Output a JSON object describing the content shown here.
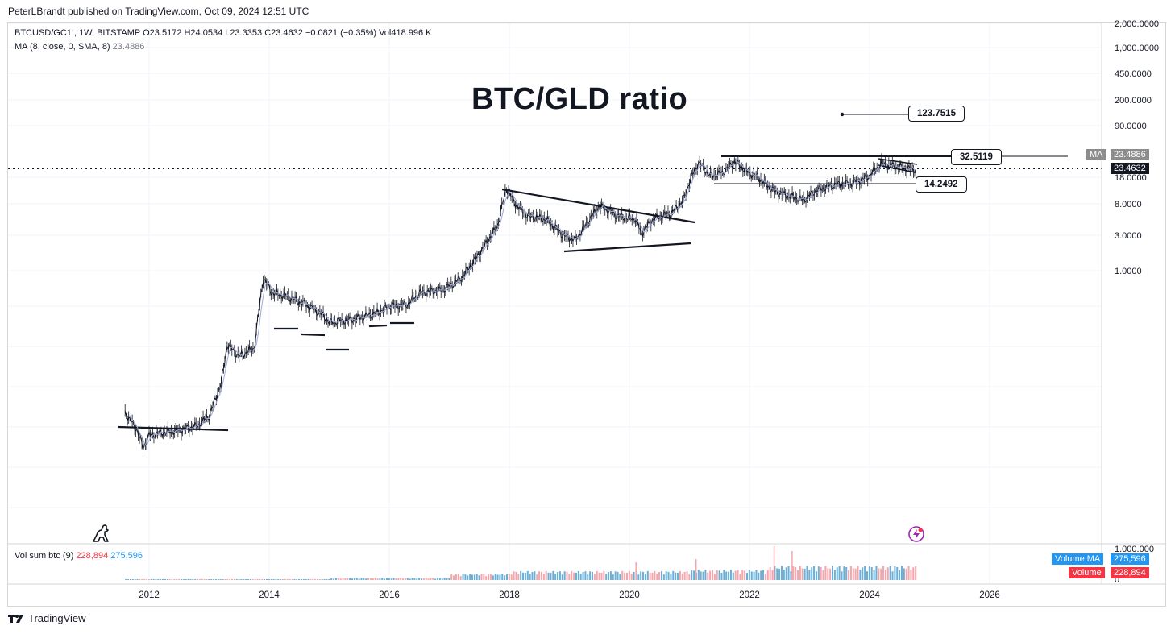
{
  "publisher_line": "PeterLBrandt published on TradingView.com, Oct 09, 2024 12:51 UTC",
  "footer_brand": "TradingView",
  "legend": {
    "symbol_line": "BTCUSD/GC1!, 1W, BITSTAMP  O23.5172  H24.0534  L23.3353  C23.4632  −0.0821 (−0.35%)  Vol418.996 K",
    "ma_label": "MA (8, close, 0, SMA, 8)",
    "ma_value": "23.4886",
    "vol_label": "Vol sum btc (9)",
    "vol_value1": "228,894",
    "vol_value2": "275,596"
  },
  "annotations": {
    "title": "BTC/GLD ratio",
    "box_high": "123.7515",
    "box_mid": "32.5119",
    "box_low": "14.2492"
  },
  "axis_tags": {
    "ma_tag_label": "MA",
    "ma_tag_value": "23.4886",
    "last_price": "23.4632",
    "volume_ma_label": "Volume MA",
    "volume_ma_value": "275,596",
    "volume_label": "Volume",
    "volume_value": "228,894"
  },
  "colors": {
    "volume_up": "#6baed6",
    "volume_down": "#f4a6ad",
    "ma_tag_bg": "#8c8c8c",
    "price_tag_bg": "#131722",
    "volume_ma_bg": "#2196f3",
    "volume_bg": "#f23645"
  },
  "chart_data": {
    "type": "line",
    "scale": "log",
    "title": "BTC/GLD ratio",
    "x_ticks": [
      "2012",
      "2014",
      "2016",
      "2018",
      "2020",
      "2022",
      "2024",
      "2026"
    ],
    "y_ticks": [
      "2,000.0000",
      "1,000.0000",
      "450.0000",
      "200.0000",
      "90.0000",
      "18.0000",
      "8.0000",
      "3.0000",
      "1.0000"
    ],
    "volume_ticks": [
      "1.000.000",
      "0"
    ],
    "series": [
      {
        "name": "BTCUSD/GC1! weekly close",
        "points": [
          [
            2011.6,
            0.012
          ],
          [
            2011.8,
            0.007
          ],
          [
            2011.9,
            0.004
          ],
          [
            2012.0,
            0.006
          ],
          [
            2012.2,
            0.0065
          ],
          [
            2012.5,
            0.007
          ],
          [
            2012.8,
            0.008
          ],
          [
            2013.0,
            0.011
          ],
          [
            2013.2,
            0.03
          ],
          [
            2013.3,
            0.1
          ],
          [
            2013.5,
            0.07
          ],
          [
            2013.75,
            0.09
          ],
          [
            2013.9,
            0.8
          ],
          [
            2014.05,
            0.5
          ],
          [
            2014.3,
            0.45
          ],
          [
            2014.6,
            0.35
          ],
          [
            2014.9,
            0.25
          ],
          [
            2015.0,
            0.2
          ],
          [
            2015.4,
            0.22
          ],
          [
            2015.8,
            0.27
          ],
          [
            2016.0,
            0.33
          ],
          [
            2016.3,
            0.35
          ],
          [
            2016.5,
            0.5
          ],
          [
            2016.9,
            0.55
          ],
          [
            2017.2,
            0.8
          ],
          [
            2017.5,
            1.7
          ],
          [
            2017.8,
            4.0
          ],
          [
            2017.95,
            13.0
          ],
          [
            2018.1,
            8.0
          ],
          [
            2018.3,
            5.5
          ],
          [
            2018.6,
            5.0
          ],
          [
            2018.9,
            3.0
          ],
          [
            2019.1,
            2.6
          ],
          [
            2019.3,
            4.5
          ],
          [
            2019.5,
            7.5
          ],
          [
            2019.8,
            5.5
          ],
          [
            2020.1,
            5.0
          ],
          [
            2020.2,
            3.2
          ],
          [
            2020.4,
            5.0
          ],
          [
            2020.7,
            6.0
          ],
          [
            2020.9,
            9.0
          ],
          [
            2021.0,
            16.0
          ],
          [
            2021.15,
            29.0
          ],
          [
            2021.35,
            19.0
          ],
          [
            2021.55,
            21.0
          ],
          [
            2021.75,
            30.0
          ],
          [
            2021.95,
            22.0
          ],
          [
            2022.15,
            18.0
          ],
          [
            2022.4,
            12.0
          ],
          [
            2022.6,
            10.5
          ],
          [
            2022.9,
            9.0
          ],
          [
            2023.1,
            12.0
          ],
          [
            2023.4,
            14.5
          ],
          [
            2023.7,
            15.0
          ],
          [
            2023.95,
            18.0
          ],
          [
            2024.2,
            28.0
          ],
          [
            2024.4,
            26.0
          ],
          [
            2024.6,
            24.0
          ],
          [
            2024.77,
            23.46
          ]
        ]
      }
    ]
  }
}
